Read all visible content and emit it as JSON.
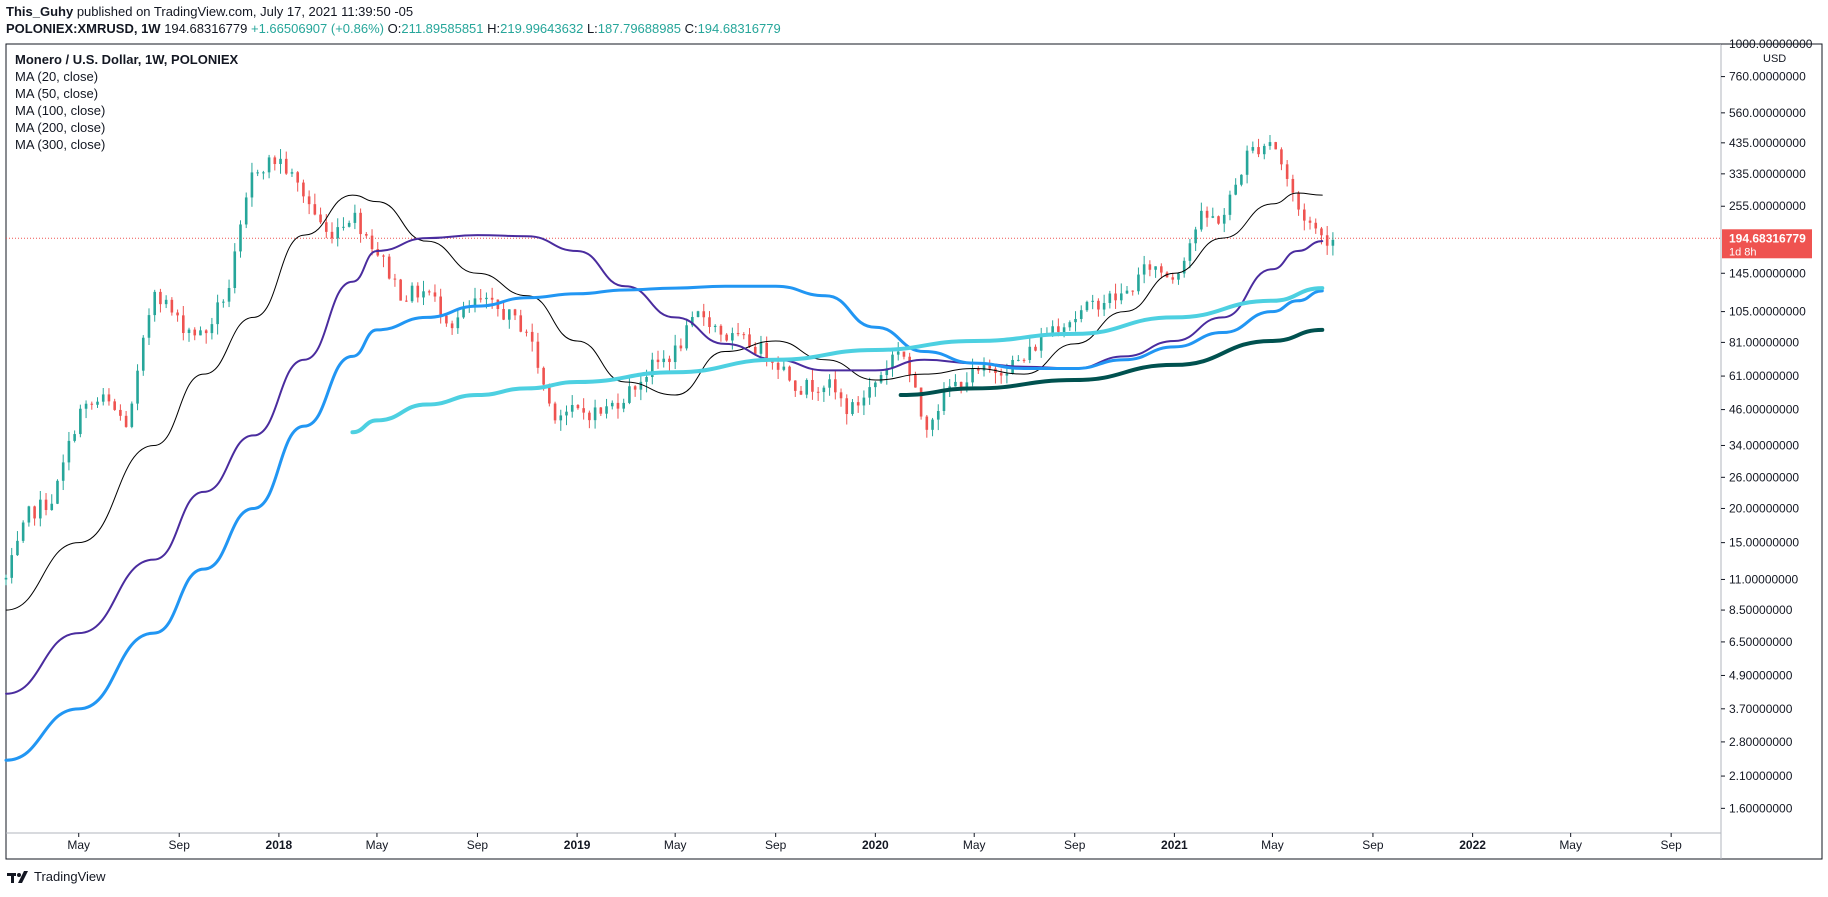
{
  "header": {
    "author": "This_Guhy",
    "published_text": "published on TradingView.com, July 17, 2021 11:39:50 -05",
    "symbol": "POLONIEX:XMRUSD, 1W",
    "last": "194.68316779",
    "change": "+1.66506907 (+0.86%)",
    "o_label": "O:",
    "o_value": "211.89585851",
    "h_label": "H:",
    "h_value": "219.99643632",
    "l_label": "L:",
    "l_value": "187.79688985",
    "c_label": "C:",
    "c_value": "194.68316779"
  },
  "legend": {
    "title": "Monero / U.S. Dollar, 1W, POLONIEX",
    "indicators": [
      "MA (20, close)",
      "MA (50, close)",
      "MA (100, close)",
      "MA (200, close)",
      "MA (300, close)"
    ]
  },
  "footer": {
    "brand": "TradingView",
    "logo_icon": "tradingview-logo-icon"
  },
  "chart_data": {
    "type": "line",
    "title": "Monero / U.S. Dollar, 1W, POLONIEX",
    "y_scale": "log",
    "y_unit": "USD",
    "ylim": [
      1.3,
      1000
    ],
    "x_range": [
      "2017-02",
      "2022-11"
    ],
    "y_ticks": [
      {
        "value": 1000,
        "label": "1000.00000000"
      },
      {
        "value": 760,
        "label": "760.00000000"
      },
      {
        "value": 560,
        "label": "560.00000000"
      },
      {
        "value": 435,
        "label": "435.00000000"
      },
      {
        "value": 335,
        "label": "335.00000000"
      },
      {
        "value": 255,
        "label": "255.00000000"
      },
      {
        "value": 145,
        "label": "145.00000000"
      },
      {
        "value": 105,
        "label": "105.00000000"
      },
      {
        "value": 81,
        "label": "81.00000000"
      },
      {
        "value": 61,
        "label": "61.00000000"
      },
      {
        "value": 46,
        "label": "46.00000000"
      },
      {
        "value": 34,
        "label": "34.00000000"
      },
      {
        "value": 26,
        "label": "26.00000000"
      },
      {
        "value": 20,
        "label": "20.00000000"
      },
      {
        "value": 15,
        "label": "15.00000000"
      },
      {
        "value": 11,
        "label": "11.00000000"
      },
      {
        "value": 8.5,
        "label": "8.50000000"
      },
      {
        "value": 6.5,
        "label": "6.50000000"
      },
      {
        "value": 4.9,
        "label": "4.90000000"
      },
      {
        "value": 3.7,
        "label": "3.70000000"
      },
      {
        "value": 2.8,
        "label": "2.80000000"
      },
      {
        "value": 2.1,
        "label": "2.10000000"
      },
      {
        "value": 1.6,
        "label": "1.60000000"
      }
    ],
    "x_ticks": [
      {
        "date": "2017-05",
        "label": "May",
        "bold": false
      },
      {
        "date": "2017-09",
        "label": "Sep",
        "bold": false
      },
      {
        "date": "2018-01",
        "label": "2018",
        "bold": true
      },
      {
        "date": "2018-05",
        "label": "May",
        "bold": false
      },
      {
        "date": "2018-09",
        "label": "Sep",
        "bold": false
      },
      {
        "date": "2019-01",
        "label": "2019",
        "bold": true
      },
      {
        "date": "2019-05",
        "label": "May",
        "bold": false
      },
      {
        "date": "2019-09",
        "label": "Sep",
        "bold": false
      },
      {
        "date": "2020-01",
        "label": "2020",
        "bold": true
      },
      {
        "date": "2020-05",
        "label": "May",
        "bold": false
      },
      {
        "date": "2020-09",
        "label": "Sep",
        "bold": false
      },
      {
        "date": "2021-01",
        "label": "2021",
        "bold": true
      },
      {
        "date": "2021-05",
        "label": "May",
        "bold": false
      },
      {
        "date": "2021-09",
        "label": "Sep",
        "bold": false
      },
      {
        "date": "2022-01",
        "label": "2022",
        "bold": true
      },
      {
        "date": "2022-05",
        "label": "May",
        "bold": false
      },
      {
        "date": "2022-09",
        "label": "Sep",
        "bold": false
      }
    ],
    "last_price": {
      "value": 194.68,
      "label": "194.68316779",
      "countdown": "1d 8h",
      "color": "#ef5350"
    },
    "colors": {
      "up": "#26a69a",
      "down": "#ef5350",
      "background": "#ffffff",
      "axis": "#131722"
    },
    "price_path": [
      {
        "date": "2017-02",
        "close": 11
      },
      {
        "date": "2017-03",
        "close": 19
      },
      {
        "date": "2017-04",
        "close": 22
      },
      {
        "date": "2017-05",
        "close": 45
      },
      {
        "date": "2017-06",
        "close": 50
      },
      {
        "date": "2017-07",
        "close": 40
      },
      {
        "date": "2017-08",
        "close": 130
      },
      {
        "date": "2017-09",
        "close": 95
      },
      {
        "date": "2017-10",
        "close": 85
      },
      {
        "date": "2017-11",
        "close": 130
      },
      {
        "date": "2017-12",
        "close": 350
      },
      {
        "date": "2018-01",
        "close": 380
      },
      {
        "date": "2018-02",
        "close": 280
      },
      {
        "date": "2018-03",
        "close": 200
      },
      {
        "date": "2018-04",
        "close": 240
      },
      {
        "date": "2018-05",
        "close": 175
      },
      {
        "date": "2018-06",
        "close": 120
      },
      {
        "date": "2018-07",
        "close": 125
      },
      {
        "date": "2018-08",
        "close": 95
      },
      {
        "date": "2018-09",
        "close": 115
      },
      {
        "date": "2018-10",
        "close": 105
      },
      {
        "date": "2018-11",
        "close": 90
      },
      {
        "date": "2018-12",
        "close": 45
      },
      {
        "date": "2019-01",
        "close": 45
      },
      {
        "date": "2019-02",
        "close": 45
      },
      {
        "date": "2019-03",
        "close": 52
      },
      {
        "date": "2019-04",
        "close": 65
      },
      {
        "date": "2019-05",
        "close": 75
      },
      {
        "date": "2019-06",
        "close": 105
      },
      {
        "date": "2019-07",
        "close": 85
      },
      {
        "date": "2019-08",
        "close": 80
      },
      {
        "date": "2019-09",
        "close": 70
      },
      {
        "date": "2019-10",
        "close": 55
      },
      {
        "date": "2019-11",
        "close": 58
      },
      {
        "date": "2019-12",
        "close": 45
      },
      {
        "date": "2020-01",
        "close": 58
      },
      {
        "date": "2020-02",
        "close": 80
      },
      {
        "date": "2020-03",
        "close": 40
      },
      {
        "date": "2020-04",
        "close": 55
      },
      {
        "date": "2020-05",
        "close": 62
      },
      {
        "date": "2020-06",
        "close": 65
      },
      {
        "date": "2020-07",
        "close": 70
      },
      {
        "date": "2020-08",
        "close": 92
      },
      {
        "date": "2020-09",
        "close": 100
      },
      {
        "date": "2020-10",
        "close": 115
      },
      {
        "date": "2020-11",
        "close": 120
      },
      {
        "date": "2020-12",
        "close": 155
      },
      {
        "date": "2021-01",
        "close": 140
      },
      {
        "date": "2021-02",
        "close": 230
      },
      {
        "date": "2021-03",
        "close": 230
      },
      {
        "date": "2021-04",
        "close": 400
      },
      {
        "date": "2021-05",
        "close": 450
      },
      {
        "date": "2021-06",
        "close": 250
      },
      {
        "date": "2021-07",
        "close": 195
      }
    ],
    "series": [
      {
        "name": "MA (20, close)",
        "color": "#000000",
        "width": 1,
        "points": [
          {
            "date": "2017-02",
            "value": 8.5
          },
          {
            "date": "2017-05",
            "value": 15
          },
          {
            "date": "2017-08",
            "value": 34
          },
          {
            "date": "2017-10",
            "value": 62
          },
          {
            "date": "2017-12",
            "value": 100
          },
          {
            "date": "2018-02",
            "value": 200
          },
          {
            "date": "2018-04",
            "value": 280
          },
          {
            "date": "2018-05",
            "value": 265
          },
          {
            "date": "2018-07",
            "value": 190
          },
          {
            "date": "2018-09",
            "value": 145
          },
          {
            "date": "2018-11",
            "value": 120
          },
          {
            "date": "2019-01",
            "value": 82
          },
          {
            "date": "2019-03",
            "value": 58
          },
          {
            "date": "2019-05",
            "value": 52
          },
          {
            "date": "2019-07",
            "value": 75
          },
          {
            "date": "2019-09",
            "value": 82
          },
          {
            "date": "2019-11",
            "value": 70
          },
          {
            "date": "2020-01",
            "value": 59
          },
          {
            "date": "2020-03",
            "value": 62
          },
          {
            "date": "2020-05",
            "value": 65
          },
          {
            "date": "2020-07",
            "value": 62
          },
          {
            "date": "2020-09",
            "value": 80
          },
          {
            "date": "2020-11",
            "value": 105
          },
          {
            "date": "2021-01",
            "value": 145
          },
          {
            "date": "2021-03",
            "value": 195
          },
          {
            "date": "2021-05",
            "value": 260
          },
          {
            "date": "2021-06",
            "value": 285
          },
          {
            "date": "2021-07",
            "value": 280
          }
        ]
      },
      {
        "name": "MA (50, close)",
        "color": "#4a2c9e",
        "width": 2,
        "points": [
          {
            "date": "2017-02",
            "value": 4.2
          },
          {
            "date": "2017-05",
            "value": 7
          },
          {
            "date": "2017-08",
            "value": 13
          },
          {
            "date": "2017-10",
            "value": 23
          },
          {
            "date": "2017-12",
            "value": 37
          },
          {
            "date": "2018-02",
            "value": 70
          },
          {
            "date": "2018-04",
            "value": 135
          },
          {
            "date": "2018-05",
            "value": 175
          },
          {
            "date": "2018-07",
            "value": 195
          },
          {
            "date": "2018-09",
            "value": 200
          },
          {
            "date": "2018-11",
            "value": 198
          },
          {
            "date": "2019-01",
            "value": 175
          },
          {
            "date": "2019-03",
            "value": 130
          },
          {
            "date": "2019-05",
            "value": 100
          },
          {
            "date": "2019-07",
            "value": 80
          },
          {
            "date": "2019-09",
            "value": 70
          },
          {
            "date": "2019-11",
            "value": 64
          },
          {
            "date": "2020-01",
            "value": 64
          },
          {
            "date": "2020-03",
            "value": 70
          },
          {
            "date": "2020-05",
            "value": 68
          },
          {
            "date": "2020-07",
            "value": 66
          },
          {
            "date": "2020-09",
            "value": 65
          },
          {
            "date": "2020-11",
            "value": 72
          },
          {
            "date": "2021-01",
            "value": 82
          },
          {
            "date": "2021-03",
            "value": 100
          },
          {
            "date": "2021-05",
            "value": 150
          },
          {
            "date": "2021-06",
            "value": 175
          },
          {
            "date": "2021-07",
            "value": 190
          }
        ]
      },
      {
        "name": "MA (100, close)",
        "color": "#2196f3",
        "width": 3,
        "points": [
          {
            "date": "2017-02",
            "value": 2.4
          },
          {
            "date": "2017-05",
            "value": 3.7
          },
          {
            "date": "2017-08",
            "value": 7
          },
          {
            "date": "2017-10",
            "value": 12
          },
          {
            "date": "2017-12",
            "value": 20
          },
          {
            "date": "2018-02",
            "value": 40
          },
          {
            "date": "2018-04",
            "value": 72
          },
          {
            "date": "2018-05",
            "value": 90
          },
          {
            "date": "2018-07",
            "value": 100
          },
          {
            "date": "2018-09",
            "value": 110
          },
          {
            "date": "2018-11",
            "value": 118
          },
          {
            "date": "2019-01",
            "value": 122
          },
          {
            "date": "2019-03",
            "value": 126
          },
          {
            "date": "2019-05",
            "value": 128
          },
          {
            "date": "2019-07",
            "value": 130
          },
          {
            "date": "2019-09",
            "value": 130
          },
          {
            "date": "2019-11",
            "value": 120
          },
          {
            "date": "2020-01",
            "value": 92
          },
          {
            "date": "2020-03",
            "value": 75
          },
          {
            "date": "2020-05",
            "value": 68
          },
          {
            "date": "2020-07",
            "value": 65
          },
          {
            "date": "2020-09",
            "value": 65
          },
          {
            "date": "2020-11",
            "value": 70
          },
          {
            "date": "2021-01",
            "value": 78
          },
          {
            "date": "2021-03",
            "value": 88
          },
          {
            "date": "2021-05",
            "value": 105
          },
          {
            "date": "2021-06",
            "value": 115
          },
          {
            "date": "2021-07",
            "value": 125
          }
        ]
      },
      {
        "name": "MA (200, close)",
        "color": "#4dd0e1",
        "width": 4,
        "points": [
          {
            "date": "2018-04",
            "value": 38
          },
          {
            "date": "2018-05",
            "value": 42
          },
          {
            "date": "2018-07",
            "value": 48
          },
          {
            "date": "2018-09",
            "value": 52
          },
          {
            "date": "2018-11",
            "value": 55
          },
          {
            "date": "2019-01",
            "value": 58
          },
          {
            "date": "2019-05",
            "value": 63
          },
          {
            "date": "2019-09",
            "value": 70
          },
          {
            "date": "2020-01",
            "value": 76
          },
          {
            "date": "2020-05",
            "value": 82
          },
          {
            "date": "2020-09",
            "value": 87
          },
          {
            "date": "2021-01",
            "value": 100
          },
          {
            "date": "2021-05",
            "value": 115
          },
          {
            "date": "2021-07",
            "value": 128
          }
        ]
      },
      {
        "name": "MA (300, close)",
        "color": "#00514f",
        "width": 4,
        "points": [
          {
            "date": "2020-02",
            "value": 52
          },
          {
            "date": "2020-05",
            "value": 55
          },
          {
            "date": "2020-09",
            "value": 59
          },
          {
            "date": "2021-01",
            "value": 67
          },
          {
            "date": "2021-05",
            "value": 82
          },
          {
            "date": "2021-07",
            "value": 90
          }
        ]
      }
    ]
  }
}
